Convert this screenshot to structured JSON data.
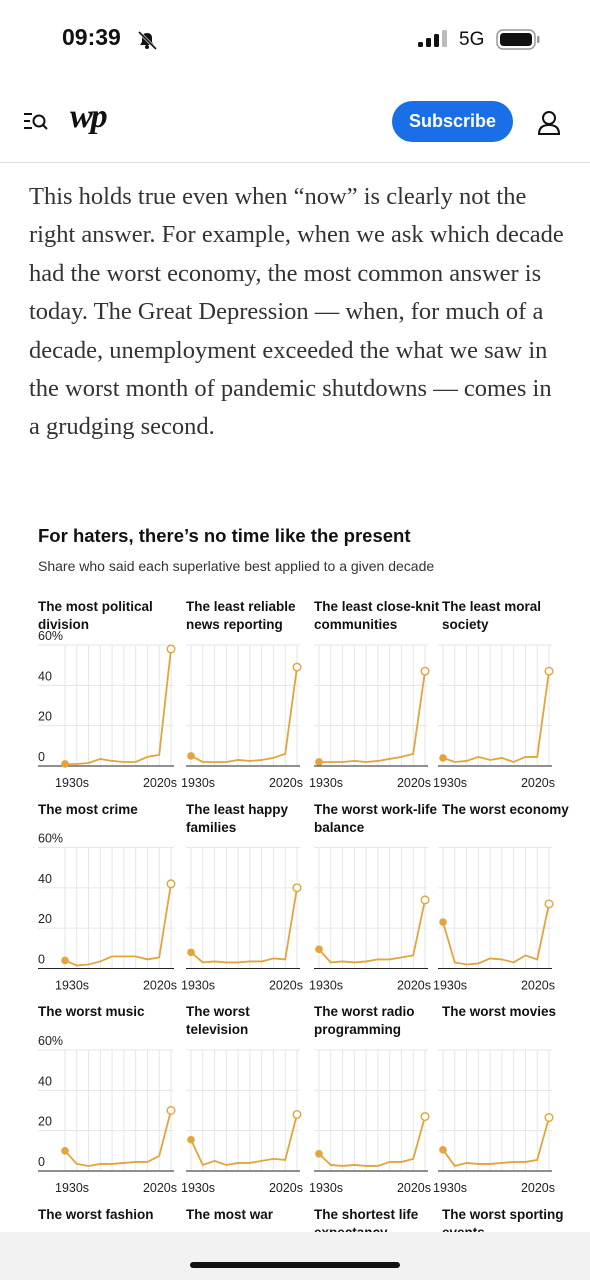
{
  "status_bar": {
    "time": "09:39",
    "network": "5G"
  },
  "header": {
    "logo": "wp",
    "subscribe": "Subscribe"
  },
  "article": {
    "paragraph": "This holds true even when “now” is clearly not the right answer. For example, when we ask which decade had the worst economy, the most common answer is today. The Great Depression — when, for much of a decade, unemployment exceeded the what we saw in the worst month of pandemic shutdowns — comes in a grudging second."
  },
  "figure": {
    "title": "For haters, there’s no time like the present",
    "subtitle": "Share who said each superlative best applied to a given decade",
    "more_panel_titles": [
      "The worst fashion",
      "The most war",
      "The shortest life expectancy",
      "The worst sporting events"
    ]
  },
  "chart_data": [
    {
      "type": "line",
      "title": "The most political division",
      "categories": [
        "1930s",
        null,
        null,
        null,
        null,
        null,
        null,
        null,
        null,
        "2020s"
      ],
      "values": [
        1,
        1,
        1.5,
        3.5,
        2.5,
        2,
        2,
        4.5,
        5.5,
        58
      ],
      "color": "#e3a43b",
      "ylim": [
        0,
        60
      ],
      "yticks": [
        0,
        20,
        40,
        {
          "value": 60,
          "label": "60%"
        }
      ],
      "grid": true
    },
    {
      "type": "line",
      "title": "The least reliable news reporting",
      "categories": [
        "1930s",
        null,
        null,
        null,
        null,
        null,
        null,
        null,
        null,
        "2020s"
      ],
      "values": [
        5,
        2,
        2,
        2,
        3,
        2.5,
        3,
        4,
        6,
        49
      ],
      "color": "#e3a43b",
      "ylim": [
        0,
        60
      ],
      "yticks": [
        0,
        20,
        40,
        60
      ],
      "grid": true
    },
    {
      "type": "line",
      "title": "The least close-knit communities",
      "categories": [
        "1930s",
        null,
        null,
        null,
        null,
        null,
        null,
        null,
        null,
        "2020s"
      ],
      "values": [
        2,
        2,
        2,
        2.5,
        2,
        2.5,
        3.5,
        4.5,
        6,
        47
      ],
      "color": "#e3a43b",
      "ylim": [
        0,
        60
      ],
      "yticks": [
        0,
        20,
        40,
        60
      ],
      "grid": true
    },
    {
      "type": "line",
      "title": "The least moral society",
      "categories": [
        "1930s",
        null,
        null,
        null,
        null,
        null,
        null,
        null,
        null,
        "2020s"
      ],
      "values": [
        4,
        2,
        2.5,
        4.5,
        3,
        4,
        2,
        4.5,
        4.5,
        47
      ],
      "color": "#e3a43b",
      "ylim": [
        0,
        60
      ],
      "yticks": [
        0,
        20,
        40,
        60
      ],
      "grid": true
    },
    {
      "type": "line",
      "title": "The most crime",
      "categories": [
        "1930s",
        null,
        null,
        null,
        null,
        null,
        null,
        null,
        null,
        "2020s"
      ],
      "values": [
        4,
        1.5,
        2,
        3.5,
        6,
        6,
        6,
        4.5,
        5.5,
        42
      ],
      "color": "#e3a43b",
      "ylim": [
        0,
        60
      ],
      "yticks": [
        0,
        20,
        40,
        {
          "value": 60,
          "label": "60%"
        }
      ],
      "grid": true
    },
    {
      "type": "line",
      "title": "The least happy families",
      "categories": [
        "1930s",
        null,
        null,
        null,
        null,
        null,
        null,
        null,
        null,
        "2020s"
      ],
      "values": [
        8,
        3,
        3.5,
        3,
        3,
        3.5,
        3.5,
        5,
        4.5,
        40
      ],
      "color": "#e3a43b",
      "ylim": [
        0,
        60
      ],
      "yticks": [
        0,
        20,
        40,
        60
      ],
      "grid": true
    },
    {
      "type": "line",
      "title": "The worst work-life balance",
      "categories": [
        "1930s",
        null,
        null,
        null,
        null,
        null,
        null,
        null,
        null,
        "2020s"
      ],
      "values": [
        9.5,
        3,
        3.5,
        3,
        3.5,
        4.5,
        4.5,
        5.5,
        6.5,
        34
      ],
      "color": "#e3a43b",
      "ylim": [
        0,
        60
      ],
      "yticks": [
        0,
        20,
        40,
        60
      ],
      "grid": true
    },
    {
      "type": "line",
      "title": "The worst economy",
      "categories": [
        "1930s",
        null,
        null,
        null,
        null,
        null,
        null,
        null,
        null,
        "2020s"
      ],
      "values": [
        23,
        3,
        2,
        2.5,
        5,
        4.5,
        3,
        6.5,
        4.5,
        32
      ],
      "color": "#e3a43b",
      "ylim": [
        0,
        60
      ],
      "yticks": [
        0,
        20,
        40,
        60
      ],
      "grid": true
    },
    {
      "type": "line",
      "title": "The worst music",
      "categories": [
        "1930s",
        null,
        null,
        null,
        null,
        null,
        null,
        null,
        null,
        "2020s"
      ],
      "values": [
        10,
        3.5,
        2.5,
        3.5,
        3.5,
        4,
        4.5,
        4.5,
        7.5,
        30
      ],
      "color": "#e3a43b",
      "ylim": [
        0,
        60
      ],
      "yticks": [
        0,
        20,
        40,
        {
          "value": 60,
          "label": "60%"
        }
      ],
      "grid": true
    },
    {
      "type": "line",
      "title": "The worst television",
      "categories": [
        "1930s",
        null,
        null,
        null,
        null,
        null,
        null,
        null,
        null,
        "2020s"
      ],
      "values": [
        15.5,
        3,
        5,
        3,
        4,
        4,
        5,
        6,
        5.5,
        28
      ],
      "color": "#e3a43b",
      "ylim": [
        0,
        60
      ],
      "yticks": [
        0,
        20,
        40,
        60
      ],
      "grid": true
    },
    {
      "type": "line",
      "title": "The worst radio programming",
      "categories": [
        "1930s",
        null,
        null,
        null,
        null,
        null,
        null,
        null,
        null,
        "2020s"
      ],
      "values": [
        8.5,
        3,
        2.5,
        3,
        2.5,
        2.5,
        4.5,
        4.5,
        6,
        27
      ],
      "color": "#e3a43b",
      "ylim": [
        0,
        60
      ],
      "yticks": [
        0,
        20,
        40,
        60
      ],
      "grid": true
    },
    {
      "type": "line",
      "title": "The worst movies",
      "categories": [
        "1930s",
        null,
        null,
        null,
        null,
        null,
        null,
        null,
        null,
        "2020s"
      ],
      "values": [
        10.5,
        2.5,
        4,
        3.5,
        3.5,
        4,
        4.5,
        4.5,
        5.5,
        26.5
      ],
      "color": "#e3a43b",
      "ylim": [
        0,
        60
      ],
      "yticks": [
        0,
        20,
        40,
        60
      ],
      "grid": true
    }
  ]
}
